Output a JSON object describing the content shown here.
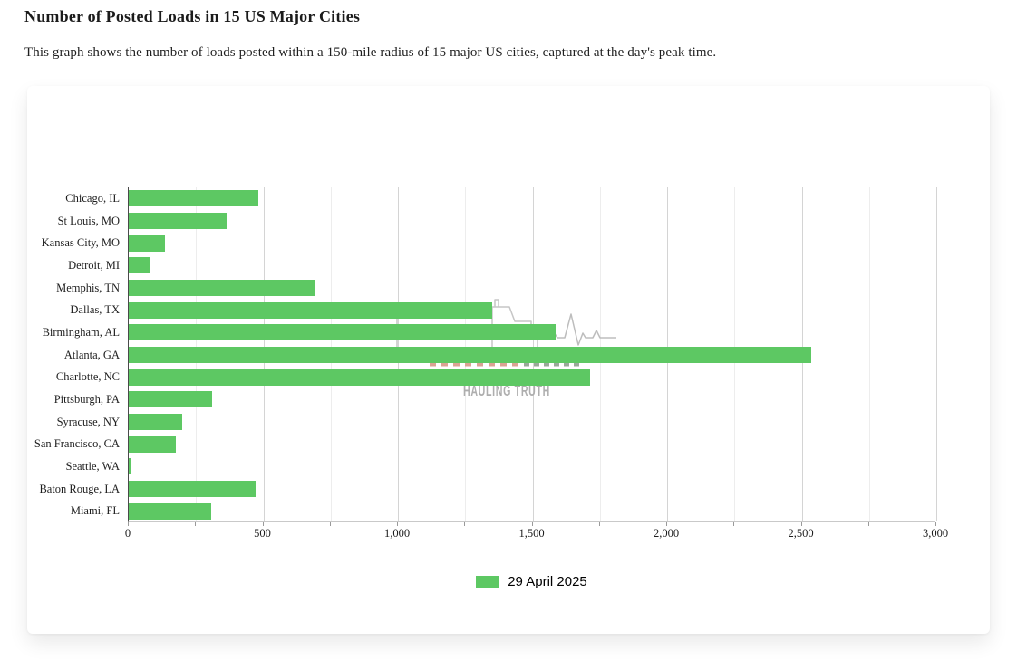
{
  "page": {
    "title": "Number of Posted Loads in 15 US Major Cities",
    "subtitle": "This graph shows the number of loads posted within a 150-mile radius of 15 major US cities, captured at the day's peak time."
  },
  "watermark": {
    "text": "HAULING TRUTH",
    "icons": [
      "semi-truck-outline-icon",
      "heartbeat-line-icon",
      "dashed-road-icon"
    ],
    "outline_color": "#c6c6c6",
    "text_color": "#aeaeae",
    "dash_color_left": "#dba394",
    "dash_color_right": "#9aa89a"
  },
  "chart_data": {
    "type": "bar",
    "orientation": "horizontal",
    "title": "Number of Posted Loads in 15 US Major Cities",
    "xlabel": "",
    "ylabel": "",
    "xlim": [
      0,
      3000
    ],
    "x_major_ticks": [
      0,
      500,
      1000,
      1500,
      2000,
      2500,
      3000
    ],
    "x_tick_labels": [
      "0",
      "500",
      "1,000",
      "1,500",
      "2,000",
      "2,500",
      "3,000"
    ],
    "x_minor_step": 250,
    "grid": true,
    "legend_position": "bottom",
    "categories": [
      "Chicago, IL",
      "St Louis, MO",
      "Kansas City, MO",
      "Detroit, MI",
      "Memphis, TN",
      "Dallas, TX",
      "Birmingham, AL",
      "Atlanta, GA",
      "Charlotte, NC",
      "Pittsburgh, PA",
      "Syracuse, NY",
      "San Francisco, CA",
      "Seattle, WA",
      "Baton Rouge, LA",
      "Miami, FL"
    ],
    "series": [
      {
        "name": "29 April 2025",
        "color": "#5dc863",
        "values": [
          480,
          365,
          135,
          80,
          695,
          1350,
          1585,
          2535,
          1715,
          310,
          200,
          175,
          10,
          470,
          305
        ]
      }
    ]
  }
}
